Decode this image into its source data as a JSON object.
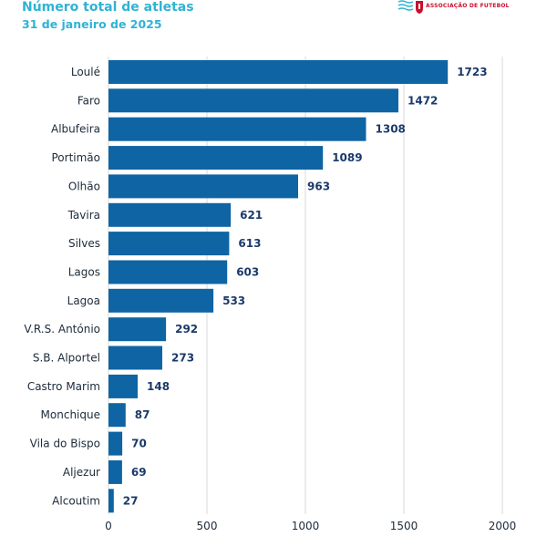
{
  "header": {
    "title": "Número total de atletas",
    "subtitle": "31 de janeiro de 2025",
    "logo_text": "ASSOCIAÇÃO DE FUTEBOL"
  },
  "colors": {
    "bar": "#0f64a3",
    "value_text": "#1b3a6b",
    "title": "#2fb3d4",
    "grid": "#d9d9d9"
  },
  "chart_data": {
    "type": "bar",
    "orientation": "horizontal",
    "title": "Número total de atletas",
    "subtitle": "31 de janeiro de 2025",
    "xlabel": "",
    "ylabel": "",
    "xlim": [
      0,
      2000
    ],
    "xticks": [
      0,
      500,
      1000,
      1500,
      2000
    ],
    "grid": "vertical",
    "categories": [
      "Loulé",
      "Faro",
      "Albufeira",
      "Portimão",
      "Olhão",
      "Tavira",
      "Silves",
      "Lagos",
      "Lagoa",
      "V.R.S. António",
      "S.B. Alportel",
      "Castro Marim",
      "Monchique",
      "Vila do Bispo",
      "Aljezur",
      "Alcoutim"
    ],
    "values": [
      1723,
      1472,
      1308,
      1089,
      963,
      621,
      613,
      603,
      533,
      292,
      273,
      148,
      87,
      70,
      69,
      27
    ]
  }
}
